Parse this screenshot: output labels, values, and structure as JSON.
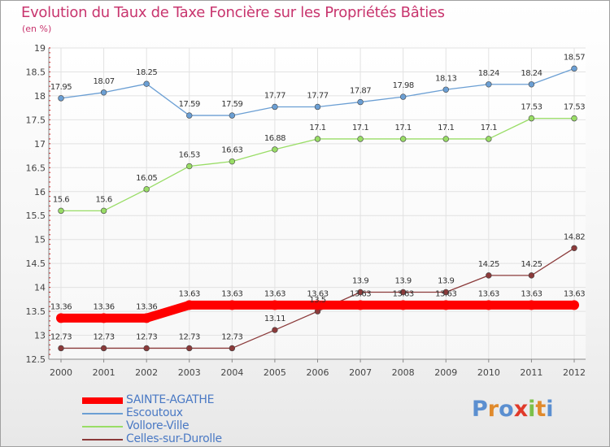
{
  "chart_data": {
    "type": "line",
    "title": "Evolution du Taux de Taxe Foncière sur les Propriétés Bâties",
    "subtitle": "(en %)",
    "xlabel": "",
    "ylabel": "",
    "x": [
      "2000",
      "2001",
      "2002",
      "2003",
      "2004",
      "2005",
      "2006",
      "2007",
      "2008",
      "2009",
      "2010",
      "2011",
      "2012"
    ],
    "ylim": [
      12.5,
      19
    ],
    "yticks": [
      "12.5",
      "13",
      "13.5",
      "14",
      "14.5",
      "15",
      "15.5",
      "16",
      "16.5",
      "17",
      "17.5",
      "18",
      "18.5",
      "19"
    ],
    "grid": true,
    "legend_position": "bottom-left",
    "series": [
      {
        "name": "SAINTE-AGATHE",
        "color": "#ff0000",
        "values": [
          13.36,
          13.36,
          13.36,
          13.63,
          13.63,
          13.63,
          13.63,
          13.63,
          13.63,
          13.63,
          13.63,
          13.63,
          13.63
        ],
        "labels": [
          "13.36",
          "13.36",
          "13.36",
          "13.63",
          "13.63",
          "13.63",
          "13.63",
          "13.63",
          "13.63",
          "13.63",
          "13.63",
          "13.63",
          "13.63"
        ]
      },
      {
        "name": "Escoutoux",
        "color": "#6b9fd4",
        "values": [
          17.95,
          18.07,
          18.25,
          17.59,
          17.59,
          17.77,
          17.77,
          17.87,
          17.98,
          18.13,
          18.24,
          18.24,
          18.57
        ],
        "labels": [
          "17.95",
          "18.07",
          "18.25",
          "17.59",
          "17.59",
          "17.77",
          "17.77",
          "17.87",
          "17.98",
          "18.13",
          "18.24",
          "18.24",
          "18.57"
        ]
      },
      {
        "name": "Vollore-Ville",
        "color": "#99dd66",
        "values": [
          15.6,
          15.6,
          16.05,
          16.53,
          16.63,
          16.88,
          17.1,
          17.1,
          17.1,
          17.1,
          17.1,
          17.53,
          17.53
        ],
        "labels": [
          "15.6",
          "15.6",
          "16.05",
          "16.53",
          "16.63",
          "16.88",
          "17.1",
          "17.1",
          "17.1",
          "17.1",
          "17.1",
          "17.53",
          "17.53"
        ]
      },
      {
        "name": "Celles-sur-Durolle",
        "color": "#8b3a3a",
        "values": [
          12.73,
          12.73,
          12.73,
          12.73,
          12.73,
          13.11,
          13.5,
          13.9,
          13.9,
          13.9,
          14.25,
          14.25,
          14.82
        ],
        "labels": [
          "12.73",
          "12.73",
          "12.73",
          "12.73",
          "12.73",
          "13.11",
          "13.5",
          "13.9",
          "13.9",
          "13.9",
          "14.25",
          "14.25",
          "14.82"
        ]
      }
    ]
  },
  "logo": {
    "letters": [
      {
        "ch": "P",
        "color": "#5b8fd0"
      },
      {
        "ch": "r",
        "color": "#e08a2c"
      },
      {
        "ch": "o",
        "color": "#5b8fd0"
      },
      {
        "ch": "x",
        "color": "#e03a2a"
      },
      {
        "ch": "i",
        "color": "#7cc04a"
      },
      {
        "ch": "t",
        "color": "#e08a2c"
      },
      {
        "ch": "i",
        "color": "#5b8fd0"
      }
    ]
  }
}
